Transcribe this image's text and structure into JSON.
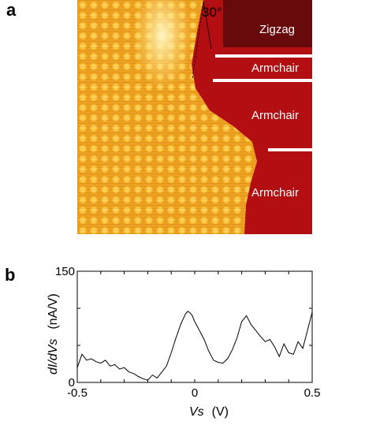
{
  "panels": {
    "a_label": "a",
    "b_label": "b"
  },
  "stm_image": {
    "angle_label": "30°",
    "regions": [
      {
        "label": "Zigzag"
      },
      {
        "label": "Armchair"
      },
      {
        "label": "Armchair"
      },
      {
        "label": "Armchair"
      }
    ],
    "colors": {
      "substrate": "#b00e12",
      "terrace": "#f2a41c",
      "bright": "#fff3b0",
      "marker": "#ffffff"
    }
  },
  "chart_data": {
    "type": "line",
    "xlabel_var": "Vs",
    "xlabel_unit": "(V)",
    "ylabel_var": "dI/dVs",
    "ylabel_unit": "(nA/V)",
    "xlim": [
      -0.5,
      0.5
    ],
    "ylim": [
      0,
      150
    ],
    "x_ticks": [
      -0.5,
      0,
      0.5
    ],
    "x_tick_labels": [
      "-0.5",
      "0",
      "0.5"
    ],
    "y_ticks": [
      0,
      150
    ],
    "y_tick_labels": [
      "0",
      "150"
    ],
    "series": [
      {
        "color": "#000000",
        "x": [
          -0.5,
          -0.48,
          -0.46,
          -0.44,
          -0.42,
          -0.4,
          -0.38,
          -0.36,
          -0.34,
          -0.32,
          -0.3,
          -0.28,
          -0.26,
          -0.24,
          -0.22,
          -0.2,
          -0.18,
          -0.16,
          -0.14,
          -0.12,
          -0.1,
          -0.08,
          -0.06,
          -0.04,
          -0.03,
          -0.02,
          -0.01,
          0.0,
          0.02,
          0.04,
          0.06,
          0.08,
          0.1,
          0.12,
          0.14,
          0.16,
          0.18,
          0.2,
          0.22,
          0.24,
          0.26,
          0.28,
          0.3,
          0.32,
          0.34,
          0.36,
          0.38,
          0.4,
          0.42,
          0.44,
          0.46,
          0.48,
          0.5
        ],
        "y": [
          20,
          38,
          30,
          32,
          28,
          26,
          30,
          22,
          24,
          18,
          20,
          14,
          12,
          8,
          5,
          3,
          10,
          6,
          14,
          22,
          40,
          60,
          78,
          92,
          96,
          94,
          90,
          82,
          70,
          58,
          42,
          30,
          27,
          26,
          32,
          44,
          60,
          82,
          90,
          78,
          70,
          62,
          55,
          58,
          48,
          35,
          52,
          40,
          38,
          55,
          46,
          70,
          95
        ]
      }
    ]
  }
}
